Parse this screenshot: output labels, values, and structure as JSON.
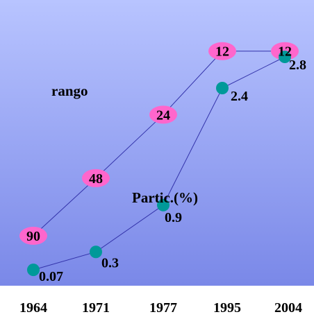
{
  "chart_data": {
    "type": "line",
    "categories": [
      "1964",
      "1971",
      "1977",
      "1995",
      "2004"
    ],
    "series": [
      {
        "name": "rango",
        "values": [
          90,
          48,
          24,
          12,
          12
        ],
        "labels": [
          "90",
          "48",
          "24",
          "12",
          "12"
        ],
        "color": "#ff66cc"
      },
      {
        "name": "Partic.(%)",
        "values": [
          0.07,
          0.3,
          0.9,
          2.4,
          2.8
        ],
        "labels": [
          "0.07",
          "0.3",
          "0.9",
          "2.4",
          "2.8"
        ],
        "color": "#009999"
      }
    ],
    "line_color": "#3333aa",
    "background": {
      "top": "#b8c4ff",
      "bottom": "#7a88e8"
    },
    "grid": false
  }
}
